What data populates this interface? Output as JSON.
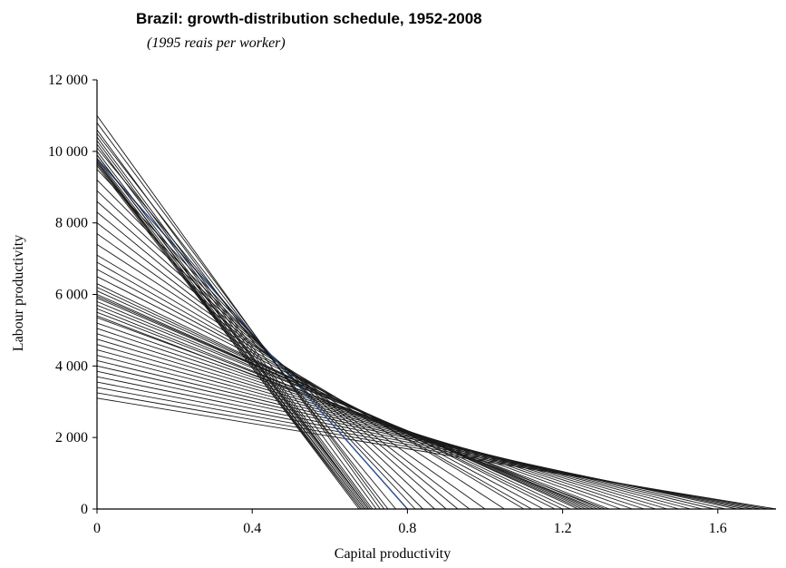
{
  "chart_data": {
    "type": "line",
    "title": "Brazil: growth-distribution schedule, 1952-2008",
    "subtitle": "(1995 reais per worker)",
    "xlabel": "Capital productivity",
    "ylabel": "Labour productivity",
    "xlim": [
      0,
      1.75
    ],
    "ylim": [
      0,
      12000
    ],
    "xticks": [
      {
        "value": 0,
        "label": "0"
      },
      {
        "value": 0.4,
        "label": "0.4"
      },
      {
        "value": 0.8,
        "label": "0.8"
      },
      {
        "value": 1.2,
        "label": "1.2"
      },
      {
        "value": 1.6,
        "label": "1.6"
      }
    ],
    "yticks": [
      {
        "value": 0,
        "label": "0"
      },
      {
        "value": 2000,
        "label": "2 000"
      },
      {
        "value": 4000,
        "label": "4 000"
      },
      {
        "value": 6000,
        "label": "6 000"
      },
      {
        "value": 8000,
        "label": "8 000"
      },
      {
        "value": 10000,
        "label": "10 000"
      },
      {
        "value": 12000,
        "label": "12 000"
      }
    ],
    "grid": false,
    "line_color": "#1a1a1a",
    "highlight_color": "#2a4a8a",
    "series": [
      {
        "x": [
          0,
          1.75
        ],
        "y": [
          3100,
          0
        ]
      },
      {
        "x": [
          0,
          1.73
        ],
        "y": [
          3250,
          0
        ]
      },
      {
        "x": [
          0,
          1.71
        ],
        "y": [
          3400,
          0
        ]
      },
      {
        "x": [
          0,
          1.69
        ],
        "y": [
          3550,
          0
        ]
      },
      {
        "x": [
          0,
          1.67
        ],
        "y": [
          3700,
          0
        ]
      },
      {
        "x": [
          0,
          1.65
        ],
        "y": [
          3850,
          0
        ]
      },
      {
        "x": [
          0,
          1.62
        ],
        "y": [
          4000,
          0
        ]
      },
      {
        "x": [
          0,
          1.59
        ],
        "y": [
          4150,
          0
        ]
      },
      {
        "x": [
          0,
          1.56
        ],
        "y": [
          4300,
          0
        ]
      },
      {
        "x": [
          0,
          1.53
        ],
        "y": [
          4450,
          0
        ]
      },
      {
        "x": [
          0,
          1.5
        ],
        "y": [
          4600,
          0
        ]
      },
      {
        "x": [
          0,
          1.47
        ],
        "y": [
          4750,
          0
        ]
      },
      {
        "x": [
          0,
          1.44
        ],
        "y": [
          4900,
          0
        ]
      },
      {
        "x": [
          0,
          1.41
        ],
        "y": [
          5050,
          0
        ]
      },
      {
        "x": [
          0,
          1.38
        ],
        "y": [
          5200,
          0
        ]
      },
      {
        "x": [
          0,
          1.35
        ],
        "y": [
          5350,
          0
        ]
      },
      {
        "x": [
          0,
          1.32
        ],
        "y": [
          5500,
          0
        ]
      },
      {
        "x": [
          0,
          1.3
        ],
        "y": [
          5700,
          0
        ]
      },
      {
        "x": [
          0,
          1.25
        ],
        "y": [
          6000,
          0
        ]
      },
      {
        "x": [
          0,
          1.2
        ],
        "y": [
          6300,
          0
        ]
      },
      {
        "x": [
          0,
          1.15
        ],
        "y": [
          6700,
          0
        ]
      },
      {
        "x": [
          0,
          1.1
        ],
        "y": [
          7100,
          0
        ]
      },
      {
        "x": [
          0,
          1.05
        ],
        "y": [
          7400,
          0
        ]
      },
      {
        "x": [
          0,
          1.0
        ],
        "y": [
          7700,
          0
        ]
      },
      {
        "x": [
          0,
          0.96
        ],
        "y": [
          8000,
          0
        ]
      },
      {
        "x": [
          0,
          0.93
        ],
        "y": [
          8300,
          0
        ]
      },
      {
        "x": [
          0,
          0.9
        ],
        "y": [
          8600,
          0
        ]
      },
      {
        "x": [
          0,
          0.87
        ],
        "y": [
          8900,
          0
        ]
      },
      {
        "x": [
          0,
          0.84
        ],
        "y": [
          9200,
          0
        ]
      },
      {
        "x": [
          0,
          0.82
        ],
        "y": [
          9500,
          0
        ]
      },
      {
        "x": [
          0,
          0.8
        ],
        "y": [
          9800,
          0
        ],
        "highlight": true
      },
      {
        "x": [
          0,
          0.77
        ],
        "y": [
          10100,
          0
        ]
      },
      {
        "x": [
          0,
          0.75
        ],
        "y": [
          10500,
          0
        ]
      },
      {
        "x": [
          0,
          0.74
        ],
        "y": [
          10800,
          0
        ]
      },
      {
        "x": [
          0,
          0.73
        ],
        "y": [
          11000,
          0
        ]
      },
      {
        "x": [
          0,
          0.72
        ],
        "y": [
          10600,
          0
        ]
      },
      {
        "x": [
          0,
          0.71
        ],
        "y": [
          10400,
          0
        ]
      },
      {
        "x": [
          0,
          0.705
        ],
        "y": [
          10300,
          0
        ]
      },
      {
        "x": [
          0,
          0.7
        ],
        "y": [
          10200,
          0
        ]
      },
      {
        "x": [
          0,
          0.7
        ],
        "y": [
          10000,
          0
        ]
      },
      {
        "x": [
          0,
          0.695
        ],
        "y": [
          9900,
          0
        ]
      },
      {
        "x": [
          0,
          0.69
        ],
        "y": [
          9800,
          0
        ]
      },
      {
        "x": [
          0,
          0.69
        ],
        "y": [
          9700,
          0
        ]
      },
      {
        "x": [
          0,
          0.685
        ],
        "y": [
          9650,
          0
        ]
      },
      {
        "x": [
          0,
          0.68
        ],
        "y": [
          9600,
          0
        ]
      },
      {
        "x": [
          0,
          0.68
        ],
        "y": [
          9750,
          0
        ]
      },
      {
        "x": [
          0,
          0.675
        ],
        "y": [
          9700,
          0
        ]
      },
      {
        "x": [
          0,
          0.7
        ],
        "y": [
          9900,
          0
        ]
      },
      {
        "x": [
          0,
          1.31
        ],
        "y": [
          5400,
          0
        ]
      },
      {
        "x": [
          0,
          1.29
        ],
        "y": [
          5600,
          0
        ]
      },
      {
        "x": [
          0,
          1.28
        ],
        "y": [
          5800,
          0
        ]
      },
      {
        "x": [
          0,
          1.27
        ],
        "y": [
          5900,
          0
        ]
      },
      {
        "x": [
          0,
          1.26
        ],
        "y": [
          5950,
          0
        ]
      },
      {
        "x": [
          0,
          1.24
        ],
        "y": [
          6100,
          0
        ]
      },
      {
        "x": [
          0,
          1.22
        ],
        "y": [
          6200,
          0
        ]
      },
      {
        "x": [
          0,
          1.18
        ],
        "y": [
          6500,
          0
        ]
      },
      {
        "x": [
          0,
          1.12
        ],
        "y": [
          6900,
          0
        ]
      }
    ]
  }
}
